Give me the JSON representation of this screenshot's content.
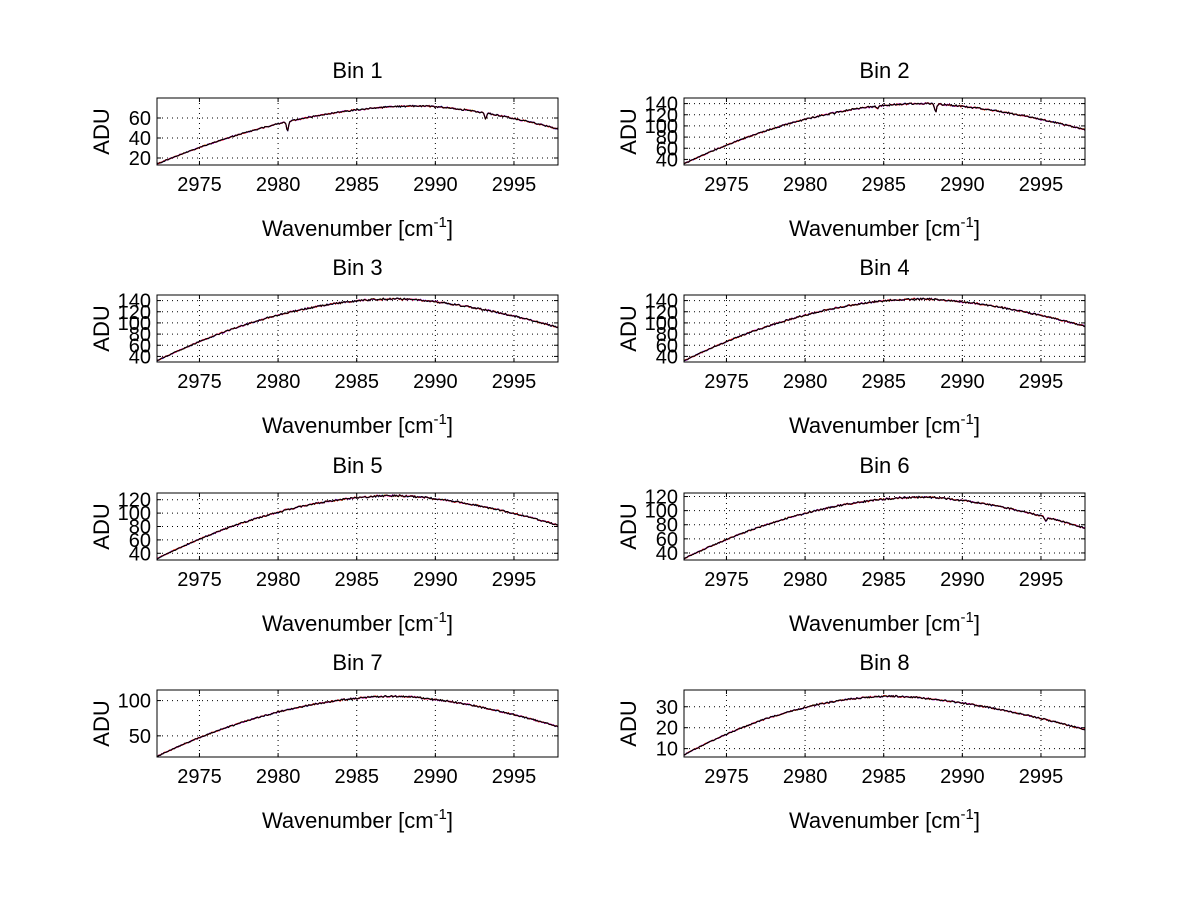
{
  "chart_data": [
    {
      "type": "line",
      "title": "Bin 1",
      "xlabel": "Wavenumber [cm",
      "xlabel_sup": "-1",
      "xlabel_close": "]",
      "ylabel": "ADU",
      "xlim": [
        2972.3,
        2997.8
      ],
      "ylim": [
        13,
        80
      ],
      "grid": true,
      "xticks": [
        2975,
        2980,
        2985,
        2990,
        2995
      ],
      "yticks": [
        20,
        40,
        60
      ],
      "curve": {
        "start": 14,
        "peak": 72,
        "peak_x": 2989.0,
        "end": 49
      },
      "dips": [
        {
          "x": 2980.6,
          "depth": 9
        },
        {
          "x": 2993.2,
          "depth": 6
        }
      ],
      "series_colors": [
        "#00c0c0",
        "#ffa500",
        "#2020ff",
        "#ff00ff",
        "#ff0000",
        "#000000"
      ]
    },
    {
      "type": "line",
      "title": "Bin 2",
      "xlabel": "Wavenumber [cm",
      "xlabel_sup": "-1",
      "xlabel_close": "]",
      "ylabel": "ADU",
      "xlim": [
        2972.3,
        2997.8
      ],
      "ylim": [
        30,
        150
      ],
      "grid": true,
      "xticks": [
        2975,
        2980,
        2985,
        2990,
        2995
      ],
      "yticks": [
        40,
        60,
        80,
        100,
        120,
        140
      ],
      "curve": {
        "start": 32,
        "peak": 140,
        "peak_x": 2987.5,
        "end": 93
      },
      "dips": [
        {
          "x": 2988.3,
          "depth": 14
        },
        {
          "x": 2984.6,
          "depth": 4
        }
      ],
      "series_colors": [
        "#00c0c0",
        "#ffa500",
        "#2020ff",
        "#ff00ff",
        "#ff0000",
        "#000000"
      ]
    },
    {
      "type": "line",
      "title": "Bin 3",
      "xlabel": "Wavenumber [cm",
      "xlabel_sup": "-1",
      "xlabel_close": "]",
      "ylabel": "ADU",
      "xlim": [
        2972.3,
        2997.8
      ],
      "ylim": [
        30,
        150
      ],
      "grid": true,
      "xticks": [
        2975,
        2980,
        2985,
        2990,
        2995
      ],
      "yticks": [
        40,
        60,
        80,
        100,
        120,
        140
      ],
      "curve": {
        "start": 32,
        "peak": 143,
        "peak_x": 2987.5,
        "end": 92
      },
      "dips": [],
      "series_colors": [
        "#00c0c0",
        "#ffa500",
        "#2020ff",
        "#ff00ff",
        "#ff0000",
        "#000000"
      ]
    },
    {
      "type": "line",
      "title": "Bin 4",
      "xlabel": "Wavenumber [cm",
      "xlabel_sup": "-1",
      "xlabel_close": "]",
      "ylabel": "ADU",
      "xlim": [
        2972.3,
        2997.8
      ],
      "ylim": [
        30,
        150
      ],
      "grid": true,
      "xticks": [
        2975,
        2980,
        2985,
        2990,
        2995
      ],
      "yticks": [
        40,
        60,
        80,
        100,
        120,
        140
      ],
      "curve": {
        "start": 32,
        "peak": 143,
        "peak_x": 2987.5,
        "end": 94
      },
      "dips": [],
      "series_colors": [
        "#00c0c0",
        "#ffa500",
        "#2020ff",
        "#ff00ff",
        "#ff0000",
        "#000000"
      ]
    },
    {
      "type": "line",
      "title": "Bin 5",
      "xlabel": "Wavenumber [cm",
      "xlabel_sup": "-1",
      "xlabel_close": "]",
      "ylabel": "ADU",
      "xlim": [
        2972.3,
        2997.8
      ],
      "ylim": [
        30,
        130
      ],
      "grid": true,
      "xticks": [
        2975,
        2980,
        2985,
        2990,
        2995
      ],
      "yticks": [
        40,
        60,
        80,
        100,
        120
      ],
      "curve": {
        "start": 32,
        "peak": 126,
        "peak_x": 2987.5,
        "end": 82
      },
      "dips": [],
      "series_colors": [
        "#00c0c0",
        "#ffa500",
        "#2020ff",
        "#ff00ff",
        "#ff0000",
        "#000000"
      ]
    },
    {
      "type": "line",
      "title": "Bin 6",
      "xlabel": "Wavenumber [cm",
      "xlabel_sup": "-1",
      "xlabel_close": "]",
      "ylabel": "ADU",
      "xlim": [
        2972.3,
        2997.8
      ],
      "ylim": [
        30,
        125
      ],
      "grid": true,
      "xticks": [
        2975,
        2980,
        2985,
        2990,
        2995
      ],
      "yticks": [
        40,
        60,
        80,
        100,
        120
      ],
      "curve": {
        "start": 32,
        "peak": 119,
        "peak_x": 2987.5,
        "end": 75
      },
      "dips": [
        {
          "x": 2995.3,
          "depth": 6
        }
      ],
      "series_colors": [
        "#00c0c0",
        "#ffa500",
        "#2020ff",
        "#ff00ff",
        "#ff0000",
        "#000000"
      ]
    },
    {
      "type": "line",
      "title": "Bin 7",
      "xlabel": "Wavenumber [cm",
      "xlabel_sup": "-1",
      "xlabel_close": "]",
      "ylabel": "ADU",
      "xlim": [
        2972.3,
        2997.8
      ],
      "ylim": [
        20,
        115
      ],
      "grid": true,
      "xticks": [
        2975,
        2980,
        2985,
        2990,
        2995
      ],
      "yticks": [
        50,
        100
      ],
      "curve": {
        "start": 21,
        "peak": 106,
        "peak_x": 2987.5,
        "end": 63
      },
      "dips": [],
      "series_colors": [
        "#00c0c0",
        "#ffa500",
        "#2020ff",
        "#ff00ff",
        "#ff0000",
        "#000000"
      ]
    },
    {
      "type": "line",
      "title": "Bin 8",
      "xlabel": "Wavenumber [cm",
      "xlabel_sup": "-1",
      "xlabel_close": "]",
      "ylabel": "ADU",
      "xlim": [
        2972.3,
        2997.8
      ],
      "ylim": [
        6,
        38
      ],
      "grid": true,
      "xticks": [
        2975,
        2980,
        2985,
        2990,
        2995
      ],
      "yticks": [
        10,
        20,
        30
      ],
      "curve": {
        "start": 7,
        "peak": 35,
        "peak_x": 2985.5,
        "end": 19
      },
      "dips": [],
      "series_colors": [
        "#00c0c0",
        "#ffa500",
        "#2020ff",
        "#ff00ff",
        "#ff0000",
        "#000000"
      ]
    }
  ]
}
